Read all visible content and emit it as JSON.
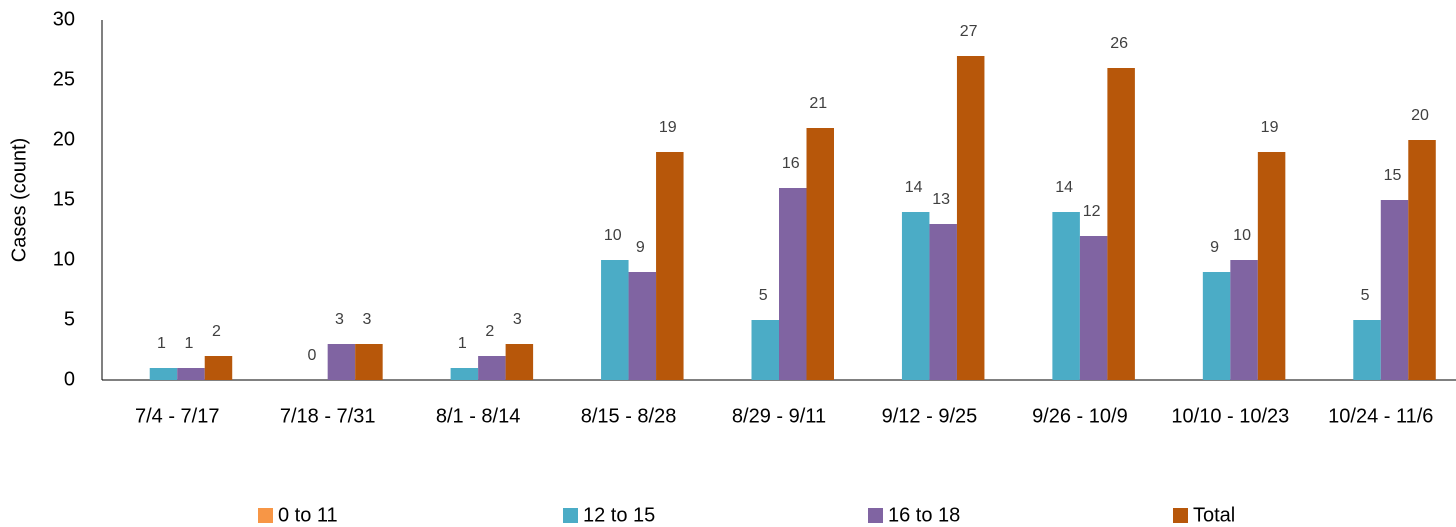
{
  "chart_data": {
    "type": "bar",
    "y_axis_label": "Cases (count)",
    "categories": [
      "7/4 - 7/17",
      "7/18 - 7/31",
      "8/1 - 8/14",
      "8/15 - 8/28",
      "8/29 - 9/11",
      "9/12 - 9/25",
      "9/26 - 10/9",
      "10/10 - 10/23",
      "10/24 - 11/6"
    ],
    "series": [
      {
        "name": "0 to 11",
        "color": "#f79646",
        "values": [
          null,
          null,
          null,
          null,
          null,
          null,
          null,
          null,
          null
        ]
      },
      {
        "name": "12 to 15",
        "color": "#4bacc6",
        "values": [
          1,
          0,
          1,
          10,
          5,
          14,
          14,
          9,
          5
        ]
      },
      {
        "name": "16 to 18",
        "color": "#8064a2",
        "values": [
          1,
          3,
          2,
          9,
          16,
          13,
          12,
          10,
          15
        ]
      },
      {
        "name": "Total",
        "color": "#b7570a",
        "values": [
          2,
          3,
          3,
          19,
          21,
          27,
          26,
          19,
          20
        ]
      }
    ],
    "ylim": [
      0,
      30
    ],
    "yticks": [
      0,
      5,
      10,
      15,
      20,
      25,
      30
    ],
    "grid": false,
    "legend": "bottom"
  }
}
